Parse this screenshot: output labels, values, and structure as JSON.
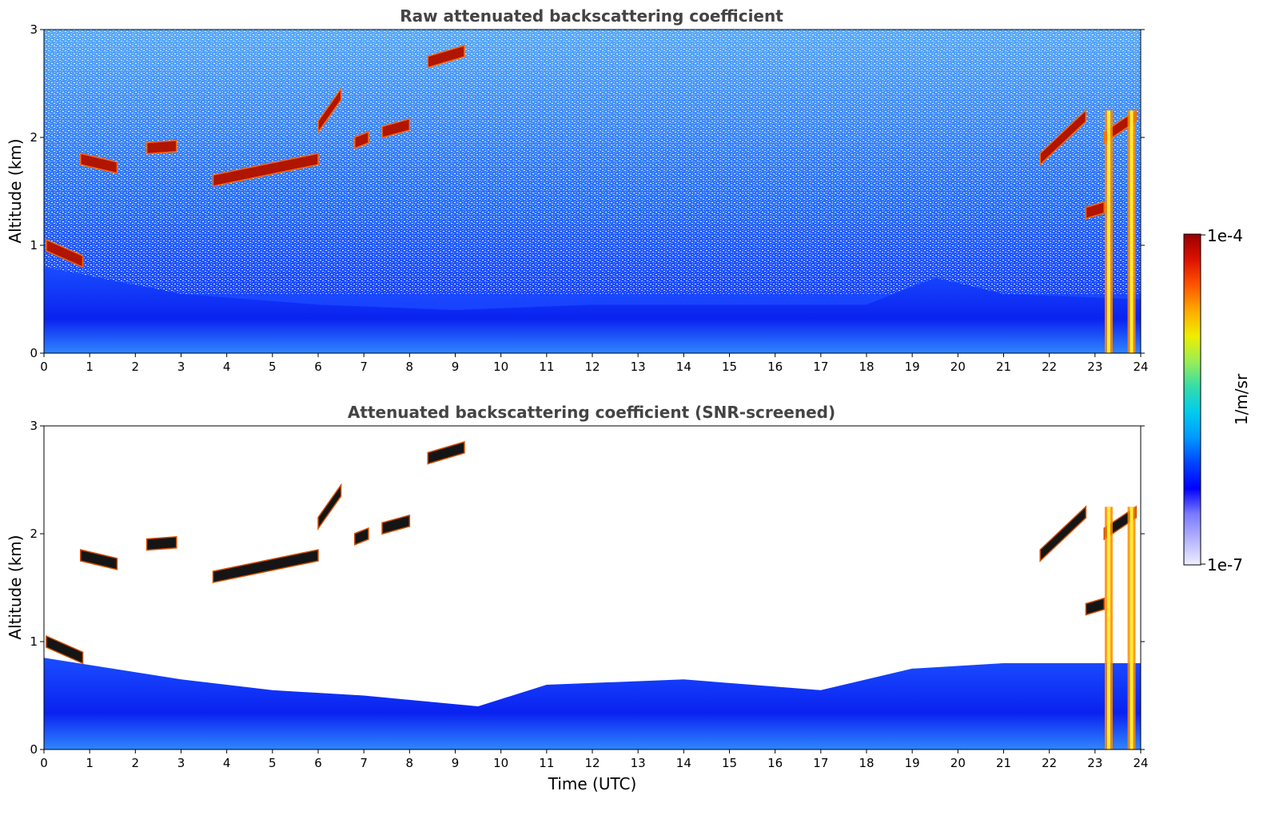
{
  "chart_data": [
    {
      "type": "heatmap",
      "title": "Raw attenuated backscattering coefficient",
      "xlabel": "",
      "ylabel": "Altitude (km)",
      "xlim": [
        0,
        24
      ],
      "ylim": [
        0,
        3
      ],
      "x_ticks": [
        "0",
        "1",
        "2",
        "3",
        "4",
        "5",
        "6",
        "7",
        "8",
        "9",
        "10",
        "11",
        "12",
        "13",
        "14",
        "15",
        "16",
        "17",
        "18",
        "19",
        "20",
        "21",
        "22",
        "23",
        "24"
      ],
      "y_ticks": [
        "0",
        "1",
        "2",
        "3"
      ],
      "background_noise": {
        "from_altitude_km": 0.5,
        "to_altitude_km": 3.0,
        "level": "noisy"
      },
      "boundary_layer_top_km": [
        {
          "t": 0,
          "alt": 0.8
        },
        {
          "t": 3,
          "alt": 0.55
        },
        {
          "t": 6,
          "alt": 0.45
        },
        {
          "t": 9,
          "alt": 0.4
        },
        {
          "t": 12,
          "alt": 0.45
        },
        {
          "t": 15,
          "alt": 0.45
        },
        {
          "t": 18,
          "alt": 0.45
        },
        {
          "t": 19.5,
          "alt": 0.7
        },
        {
          "t": 21,
          "alt": 0.55
        },
        {
          "t": 24,
          "alt": 0.5
        }
      ],
      "cloud_layers": [
        {
          "t_start": 0.05,
          "t_end": 0.85,
          "alt_start": 1.0,
          "alt_end": 0.85
        },
        {
          "t_start": 0.8,
          "t_end": 1.6,
          "alt_start": 1.8,
          "alt_end": 1.72
        },
        {
          "t_start": 2.25,
          "t_end": 2.9,
          "alt_start": 1.9,
          "alt_end": 1.92
        },
        {
          "t_start": 3.7,
          "t_end": 6.0,
          "alt_start": 1.6,
          "alt_end": 1.8
        },
        {
          "t_start": 6.0,
          "t_end": 6.5,
          "alt_start": 2.1,
          "alt_end": 2.4
        },
        {
          "t_start": 6.8,
          "t_end": 7.1,
          "alt_start": 1.95,
          "alt_end": 2.0
        },
        {
          "t_start": 7.4,
          "t_end": 8.0,
          "alt_start": 2.05,
          "alt_end": 2.12
        },
        {
          "t_start": 8.4,
          "t_end": 9.2,
          "alt_start": 2.7,
          "alt_end": 2.8
        },
        {
          "t_start": 21.8,
          "t_end": 22.8,
          "alt_start": 1.8,
          "alt_end": 2.2
        },
        {
          "t_start": 22.8,
          "t_end": 23.2,
          "alt_start": 1.3,
          "alt_end": 1.35
        },
        {
          "t_start": 23.2,
          "t_end": 23.9,
          "alt_start": 2.0,
          "alt_end": 2.2
        }
      ],
      "precipitation_columns_hours": [
        23.3,
        23.8
      ]
    },
    {
      "type": "heatmap",
      "title": "Attenuated backscattering coefficient (SNR-screened)",
      "xlabel": "Time (UTC)",
      "ylabel": "Altitude (km)",
      "xlim": [
        0,
        24
      ],
      "ylim": [
        0,
        3
      ],
      "x_ticks": [
        "0",
        "1",
        "2",
        "3",
        "4",
        "5",
        "6",
        "7",
        "8",
        "9",
        "10",
        "11",
        "12",
        "13",
        "14",
        "15",
        "16",
        "17",
        "18",
        "19",
        "20",
        "21",
        "22",
        "23",
        "24"
      ],
      "y_ticks": [
        "0",
        "1",
        "2",
        "3"
      ],
      "screened_top_km": [
        {
          "t": 0,
          "alt": 0.85
        },
        {
          "t": 1.5,
          "alt": 0.75
        },
        {
          "t": 3,
          "alt": 0.65
        },
        {
          "t": 5,
          "alt": 0.55
        },
        {
          "t": 7,
          "alt": 0.5
        },
        {
          "t": 9.5,
          "alt": 0.4
        },
        {
          "t": 11,
          "alt": 0.6
        },
        {
          "t": 14,
          "alt": 0.65
        },
        {
          "t": 17,
          "alt": 0.55
        },
        {
          "t": 19,
          "alt": 0.75
        },
        {
          "t": 21,
          "alt": 0.8
        },
        {
          "t": 23,
          "alt": 0.8
        },
        {
          "t": 24,
          "alt": 0.8
        }
      ]
    }
  ],
  "colorbar": {
    "label": "1/m/sr",
    "max_label": "1e-4",
    "min_label": "1e-7",
    "colors": [
      "#eeeeff",
      "#b4b4ff",
      "#7a7aff",
      "#0000ff",
      "#0044ff",
      "#0099ff",
      "#00ccee",
      "#33ddaa",
      "#99ee55",
      "#eeee00",
      "#ffaa00",
      "#ff5500",
      "#dd1100",
      "#990000"
    ]
  }
}
